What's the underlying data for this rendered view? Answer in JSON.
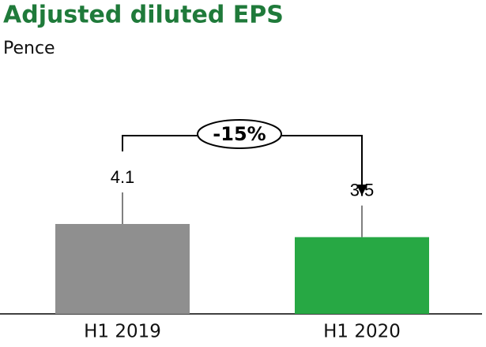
{
  "chart_data": {
    "type": "bar",
    "title": "Adjusted diluted EPS",
    "subtitle": "Pence",
    "categories": [
      "H1 2019",
      "H1 2020"
    ],
    "values": [
      4.1,
      3.5
    ],
    "colors": [
      "#8f8f8f",
      "#27a844"
    ],
    "annotation": "-15%"
  }
}
